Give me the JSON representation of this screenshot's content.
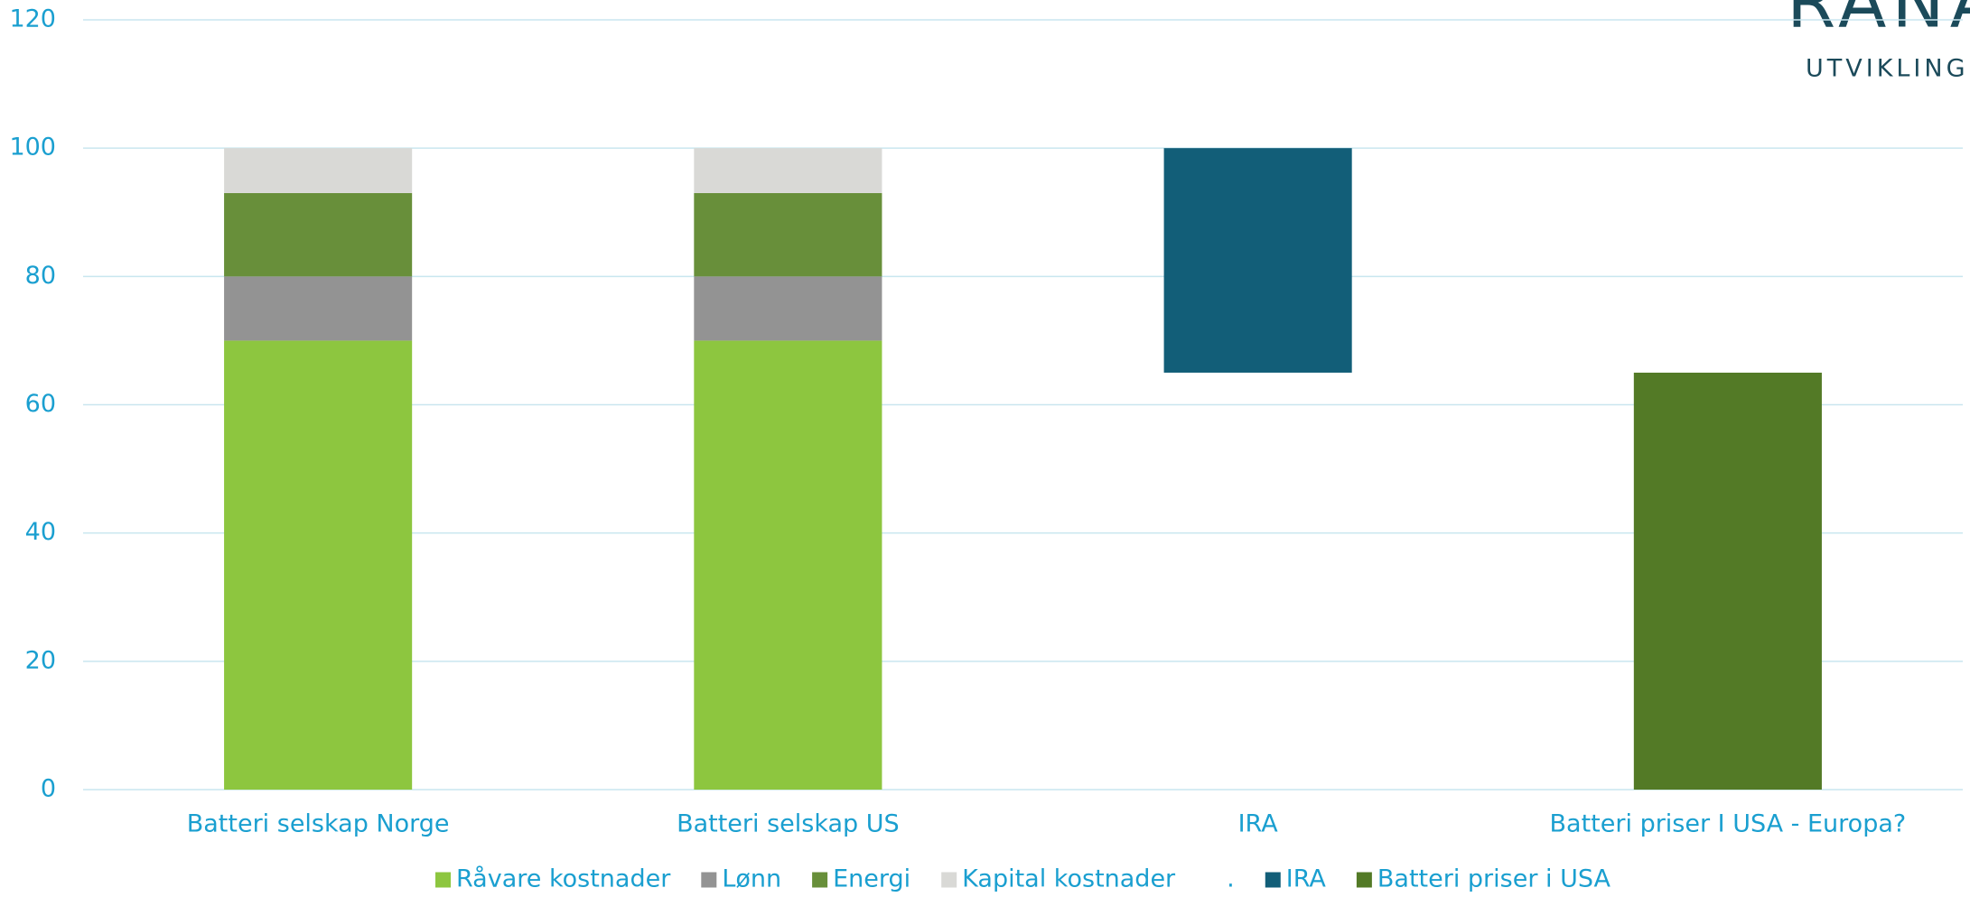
{
  "logo": {
    "name": "RANA",
    "subtitle": "UTVIKLING"
  },
  "chart_data": {
    "type": "stacked_bar",
    "categories": [
      "Batteri selskap Norge",
      "Batteri selskap US",
      "IRA",
      "Batteri priser I USA - Europa?"
    ],
    "series": [
      {
        "name": "Råvare kostnader",
        "color": "#8dc63f",
        "values": [
          70,
          70,
          null,
          null
        ]
      },
      {
        "name": "Lønn",
        "color": "#939393",
        "values": [
          10,
          10,
          null,
          null
        ]
      },
      {
        "name": "Energi",
        "color": "#688f3a",
        "values": [
          13,
          13,
          null,
          null
        ]
      },
      {
        "name": "Kapital kostnader",
        "color": "#d9d9d6",
        "values": [
          7,
          7,
          null,
          null
        ]
      },
      {
        "name": ".",
        "color": "none",
        "values": [
          null,
          null,
          65,
          null
        ]
      },
      {
        "name": "IRA",
        "color": "#125e78",
        "values": [
          null,
          null,
          35,
          null
        ]
      },
      {
        "name": "Batteri priser i USA",
        "color": "#537a26",
        "values": [
          null,
          null,
          null,
          65
        ]
      }
    ],
    "ylim": [
      0,
      120
    ],
    "yticks": [
      0,
      20,
      40,
      60,
      80,
      100,
      120
    ],
    "grid": true,
    "legend": "bottom"
  }
}
